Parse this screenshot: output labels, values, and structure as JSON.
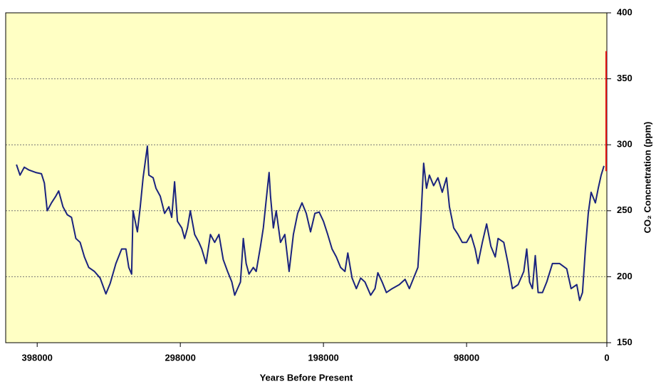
{
  "chart_data": {
    "type": "line",
    "x_label": "Years Before Present",
    "y_label": "CO₂ Concnetration (ppm)",
    "xlim": [
      420000,
      0
    ],
    "xticks": [
      398000,
      298000,
      198000,
      98000,
      0
    ],
    "ylim": [
      150,
      400
    ],
    "yticks": [
      150,
      200,
      250,
      300,
      350,
      400
    ],
    "grid": true,
    "y_axis_side": "right",
    "background": "#ffffc4",
    "series": [
      {
        "color": "#1a237e",
        "x": [
          412500,
          410000,
          407000,
          404000,
          399000,
          395000,
          393000,
          391000,
          388000,
          385000,
          383000,
          380000,
          377000,
          374000,
          371000,
          368000,
          365000,
          362000,
          358000,
          354000,
          350000,
          347000,
          343000,
          339000,
          336000,
          334000,
          332000,
          331000,
          328000,
          326000,
          324000,
          322000,
          321000,
          320000,
          317000,
          315000,
          312000,
          309000,
          306000,
          304000,
          302000,
          300000,
          297000,
          295000,
          293000,
          291000,
          288000,
          285000,
          283000,
          280000,
          277000,
          274000,
          271000,
          268000,
          265000,
          262000,
          260000,
          258000,
          256000,
          254000,
          252000,
          250000,
          247000,
          245000,
          242000,
          240000,
          238000,
          236000,
          235000,
          233000,
          231000,
          228000,
          225000,
          222000,
          219000,
          216000,
          213000,
          210000,
          207000,
          204000,
          201000,
          198000,
          195000,
          192000,
          189000,
          186000,
          183000,
          181000,
          178000,
          175000,
          172000,
          169000,
          165000,
          162000,
          160000,
          157000,
          154000,
          150000,
          145000,
          141000,
          138000,
          135000,
          132000,
          130000,
          128000,
          126000,
          124000,
          121000,
          118000,
          115000,
          112000,
          110000,
          107000,
          104000,
          101000,
          98000,
          95000,
          92000,
          90000,
          87000,
          84000,
          81000,
          78000,
          76000,
          72000,
          69000,
          66000,
          62000,
          58000,
          56000,
          54000,
          52000,
          50000,
          48000,
          45000,
          42000,
          38000,
          33000,
          28000,
          25000,
          21000,
          19000,
          17000,
          15000,
          13000,
          11000,
          8000,
          6000,
          4000,
          2000
        ],
        "values": [
          285,
          277,
          283,
          281,
          279,
          278,
          271,
          250,
          256,
          261,
          265,
          253,
          247,
          245,
          229,
          226,
          215,
          207,
          204,
          199,
          187,
          195,
          210,
          221,
          221,
          207,
          202,
          250,
          234,
          253,
          275,
          291,
          299,
          277,
          275,
          267,
          261,
          248,
          253,
          245,
          272,
          242,
          237,
          229,
          237,
          250,
          232,
          226,
          221,
          210,
          232,
          226,
          232,
          213,
          204,
          196,
          186,
          191,
          196,
          229,
          210,
          202,
          207,
          204,
          223,
          237,
          258,
          279,
          261,
          237,
          250,
          226,
          232,
          204,
          232,
          248,
          256,
          248,
          234,
          248,
          249,
          242,
          232,
          221,
          215,
          207,
          204,
          218,
          199,
          191,
          199,
          196,
          186,
          191,
          203,
          196,
          188,
          191,
          194,
          198,
          191,
          199,
          207,
          242,
          286,
          267,
          277,
          269,
          275,
          264,
          275,
          253,
          237,
          232,
          226,
          226,
          232,
          221,
          210,
          226,
          240,
          223,
          215,
          229,
          226,
          210,
          191,
          194,
          204,
          221,
          196,
          191,
          216,
          188,
          188,
          196,
          210,
          210,
          206,
          191,
          194,
          182,
          188,
          221,
          248,
          264,
          256,
          267,
          277,
          284
        ]
      },
      {
        "color": "#e01010",
        "x": [
          500,
          500
        ],
        "values": [
          280,
          371
        ]
      }
    ]
  }
}
